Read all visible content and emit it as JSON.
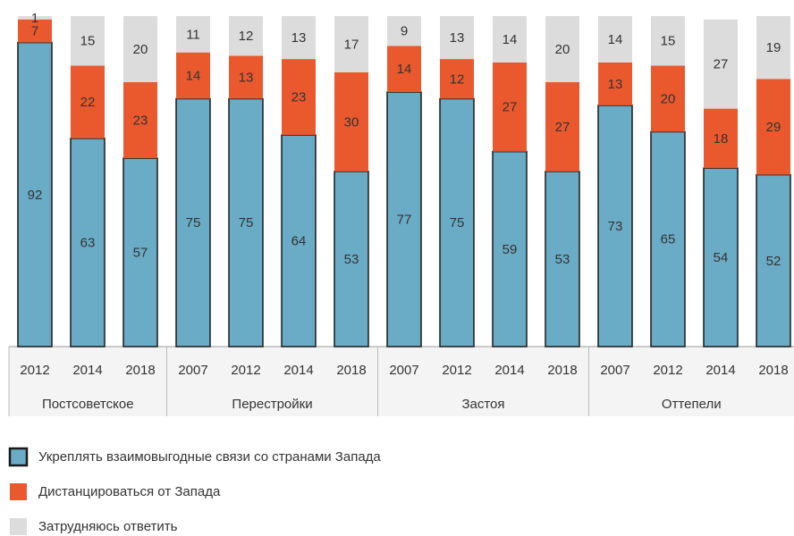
{
  "chart_data": {
    "type": "stacked_bar",
    "groups": [
      {
        "name": "Постсоветское",
        "categories": [
          "2012",
          "2014",
          "2018"
        ]
      },
      {
        "name": "Перестройки",
        "categories": [
          "2007",
          "2012",
          "2014",
          "2018"
        ]
      },
      {
        "name": "Застоя",
        "categories": [
          "2007",
          "2012",
          "2014",
          "2018"
        ]
      },
      {
        "name": "Оттепели",
        "categories": [
          "2007",
          "2012",
          "2014",
          "2018"
        ]
      }
    ],
    "series": [
      {
        "name": "Укреплять взаимовыгодные связи со странами Запада",
        "color": "#6aabc6",
        "values": [
          92,
          63,
          57,
          75,
          75,
          64,
          53,
          77,
          75,
          59,
          53,
          73,
          65,
          54,
          52
        ]
      },
      {
        "name": "Дистанцироваться от Запада",
        "color": "#e9592d",
        "values": [
          7,
          22,
          23,
          14,
          13,
          23,
          30,
          14,
          12,
          27,
          27,
          13,
          20,
          18,
          29
        ]
      },
      {
        "name": "Затрудняюсь ответить",
        "color": "#dcdcdd",
        "values": [
          1,
          15,
          20,
          11,
          12,
          13,
          17,
          9,
          13,
          14,
          20,
          14,
          15,
          27,
          19
        ]
      }
    ],
    "ylim": [
      0,
      100
    ]
  }
}
